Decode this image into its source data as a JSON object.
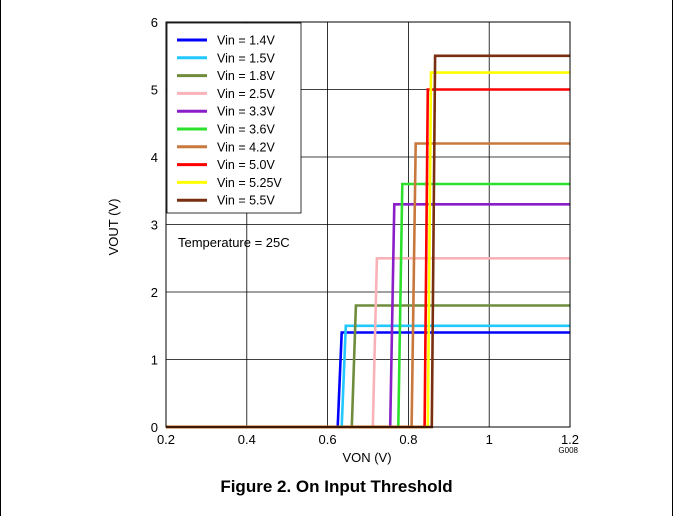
{
  "chart_data": {
    "type": "line",
    "xlabel": "VON (V)",
    "ylabel": "VOUT (V)",
    "xlim": [
      0.2,
      1.2
    ],
    "ylim": [
      0,
      6
    ],
    "xticks": [
      "0.2",
      "0.4",
      "0.6",
      "0.8",
      "1",
      "1.2"
    ],
    "yticks": [
      "0",
      "1",
      "2",
      "3",
      "4",
      "5",
      "6"
    ],
    "grid": true,
    "legend_position": "top-left",
    "annotation": "Temperature = 25C",
    "graph_id": "G008",
    "caption": "Figure 2. On Input Threshold",
    "series": [
      {
        "name": "Vin = 1.4V",
        "color": "#0000ff",
        "x": [
          0.2,
          0.625,
          0.635,
          1.2
        ],
        "y": [
          0,
          0,
          1.4,
          1.4
        ]
      },
      {
        "name": "Vin = 1.5V",
        "color": "#22c8ff",
        "x": [
          0.2,
          0.635,
          0.645,
          1.2
        ],
        "y": [
          0,
          0,
          1.5,
          1.5
        ]
      },
      {
        "name": "Vin = 1.8V",
        "color": "#6e8c3c",
        "x": [
          0.2,
          0.66,
          0.67,
          1.2
        ],
        "y": [
          0,
          0,
          1.8,
          1.8
        ]
      },
      {
        "name": "Vin = 2.5V",
        "color": "#f9b2b8",
        "x": [
          0.2,
          0.712,
          0.722,
          1.2
        ],
        "y": [
          0,
          0,
          2.5,
          2.5
        ]
      },
      {
        "name": "Vin = 3.3V",
        "color": "#8a1ec8",
        "x": [
          0.2,
          0.755,
          0.765,
          1.2
        ],
        "y": [
          0,
          0,
          3.3,
          3.3
        ]
      },
      {
        "name": "Vin = 3.6V",
        "color": "#2ee02e",
        "x": [
          0.2,
          0.775,
          0.785,
          1.2
        ],
        "y": [
          0,
          0,
          3.6,
          3.6
        ]
      },
      {
        "name": "Vin = 4.2V",
        "color": "#c8783c",
        "x": [
          0.2,
          0.808,
          0.818,
          1.2
        ],
        "y": [
          0,
          0,
          4.2,
          4.2
        ]
      },
      {
        "name": "Vin = 5.0V",
        "color": "#ff0000",
        "x": [
          0.2,
          0.84,
          0.848,
          1.2
        ],
        "y": [
          0,
          0,
          5.0,
          5.0
        ]
      },
      {
        "name": "Vin = 5.25V",
        "color": "#ffff00",
        "x": [
          0.2,
          0.848,
          0.856,
          1.2
        ],
        "y": [
          0,
          0,
          5.25,
          5.25
        ]
      },
      {
        "name": "Vin = 5.5V",
        "color": "#7a2e10",
        "x": [
          0.2,
          0.858,
          0.866,
          1.2
        ],
        "y": [
          0,
          0,
          5.5,
          5.5
        ]
      }
    ]
  }
}
